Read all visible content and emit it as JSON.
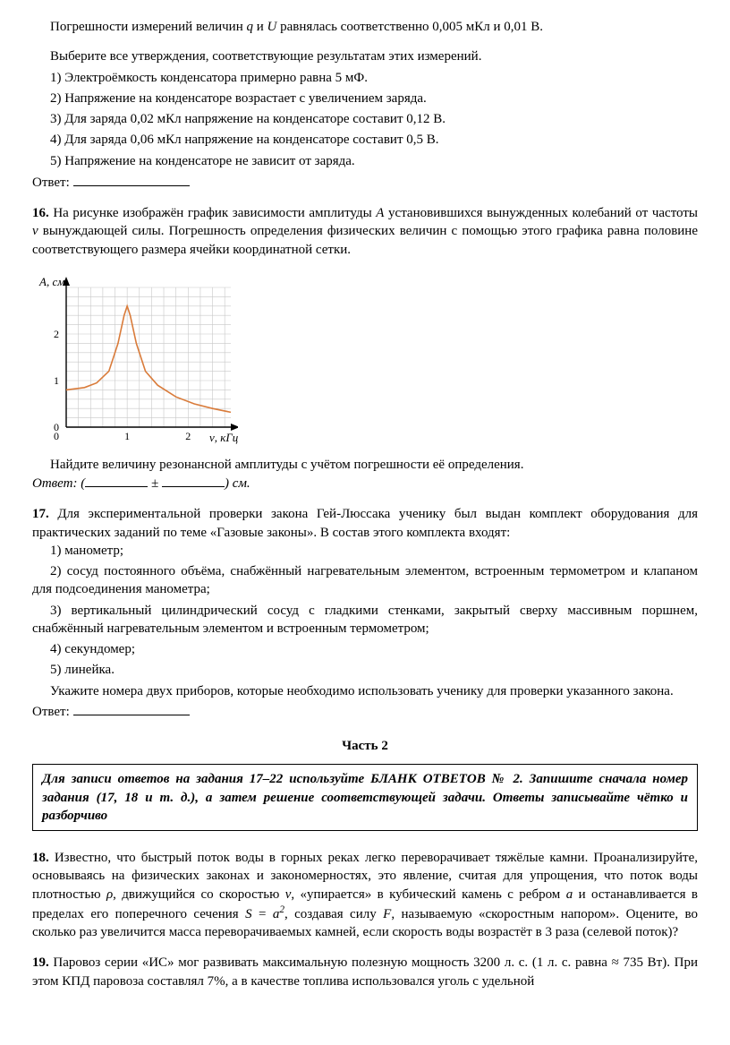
{
  "top": {
    "line1_pre": "Погрешности измерений величин ",
    "q_sym": "q",
    "line1_mid": " и ",
    "U_sym": "U",
    "line1_post": " равнялась соответственно 0,005 мКл и 0,01 В.",
    "prompt": "Выберите все утверждения, соответствующие результатам этих измерений.",
    "opt1": "1) Электроёмкость конденсатора примерно равна 5 мФ.",
    "opt2": "2) Напряжение на конденсаторе возрастает с увеличением заряда.",
    "opt3": "3) Для заряда 0,02 мКл напряжение на конденсаторе составит 0,12 В.",
    "opt4": "4) Для заряда 0,06 мКл напряжение на конденсаторе составит 0,5 В.",
    "opt5": "5) Напряжение на конденсаторе не зависит от заряда.",
    "answer_label": "Ответ:"
  },
  "q16": {
    "num": "16.",
    "text_pre": " На рисунке изображён график зависимости амплитуды ",
    "A_sym": "A",
    "text_mid1": " установившихся вынужденных колебаний от частоты ",
    "v_sym": "ν",
    "text_post": " вынуждающей силы. Погрешность определения физических величин с помощью этого графика равна половине соответствующего размера ячейки координатной сетки.",
    "caption": "Найдите величину резонансной амплитуды с учётом погрешности её определения.",
    "answer_pre": "Ответ: (",
    "answer_pm": " ± ",
    "answer_post": ") см."
  },
  "chart": {
    "y_label": "A, см",
    "x_label": "ν, кГц",
    "y_ticks": [
      "0",
      "1",
      "2"
    ],
    "x_ticks": [
      "1",
      "2"
    ],
    "grid_color": "#c8c8c8",
    "axis_color": "#000000",
    "curve_color": "#d97b3a",
    "bg": "#ffffff",
    "curve_points": [
      [
        0,
        0.8
      ],
      [
        0.3,
        0.85
      ],
      [
        0.5,
        0.95
      ],
      [
        0.7,
        1.2
      ],
      [
        0.85,
        1.8
      ],
      [
        0.95,
        2.4
      ],
      [
        1.0,
        2.6
      ],
      [
        1.05,
        2.4
      ],
      [
        1.15,
        1.8
      ],
      [
        1.3,
        1.2
      ],
      [
        1.5,
        0.9
      ],
      [
        1.8,
        0.65
      ],
      [
        2.1,
        0.5
      ],
      [
        2.4,
        0.4
      ],
      [
        2.7,
        0.32
      ]
    ],
    "x_max": 2.7,
    "y_max": 3.0
  },
  "q17": {
    "num": "17.",
    "lead": " Для экспериментальной проверки закона Гей-Люссака ученику был выдан комплект оборудования для практических заданий по теме «Газовые законы». В состав этого комплекта входят:",
    "opt1": "1) манометр;",
    "opt2": "2) сосуд постоянного объёма, снабжённый нагревательным элементом, встроенным термометром и клапаном для подсоединения манометра;",
    "opt3": "3) вертикальный цилиндрический сосуд с гладкими стенками, закрытый сверху массивным поршнем, снабжённый нагревательным элементом и встроенным термометром;",
    "opt4": "4) секундомер;",
    "opt5": "5) линейка.",
    "after": "Укажите номера двух приборов, которые необходимо использовать ученику для проверки указанного закона.",
    "answer_label": "Ответ:"
  },
  "part2": {
    "title": "Часть 2",
    "instruction": "Для записи ответов на задания 17–22 используйте БЛАНК ОТВЕТОВ № 2. Запишите сначала номер задания (17, 18 и т. д.), а затем решение соответствующей задачи. Ответы записывайте чётко и разборчиво"
  },
  "q18": {
    "num": "18.",
    "t1": " Известно, что быстрый поток воды в горных реках легко переворачивает тяжёлые камни. Проанализируйте, основываясь на физических законах и закономерностях, это явление, считая для упрощения, что поток воды плотностью ",
    "rho": "ρ",
    "t2": ", движущийся со скоростью ",
    "v": "v",
    "t3": ", «упирается» в кубический камень с ребром ",
    "a": "a",
    "t4": " и останавливается в пределах его поперечного сечения ",
    "S": "S",
    "t5": " = ",
    "a2": "a",
    "t6": ", создавая силу ",
    "F": "F",
    "t7": ", называемую «скоростным напором». Оцените, во сколько раз увеличится масса переворачиваемых камней, если скорость воды возрастёт в 3 раза (селевой поток)?"
  },
  "q19": {
    "num": "19.",
    "text": " Паровоз серии «ИС» мог развивать максимальную полезную мощность 3200 л. с. (1 л. с. равна ≈ 735 Вт). При этом КПД паровоза составлял 7%, а в качестве топлива использовался уголь с удельной"
  }
}
